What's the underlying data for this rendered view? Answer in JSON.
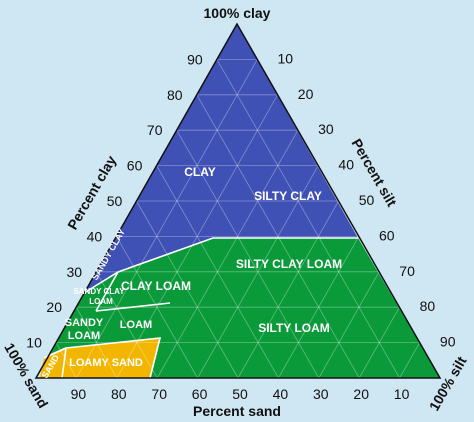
{
  "corners": {
    "top": "100% clay",
    "left": "100% sand",
    "right": "100% silt"
  },
  "axis_titles": {
    "left": "Percent clay",
    "right": "Percent silt",
    "bottom": "Percent sand"
  },
  "left_ticks": [
    "90",
    "80",
    "70",
    "60",
    "50",
    "40",
    "30",
    "20",
    "10"
  ],
  "right_ticks": [
    "10",
    "20",
    "30",
    "40",
    "50",
    "60",
    "70",
    "80",
    "90"
  ],
  "bottom_ticks": [
    "90",
    "80",
    "70",
    "60",
    "50",
    "40",
    "30",
    "20",
    "10"
  ],
  "regions": {
    "clay": "CLAY",
    "silty_clay": "SILTY CLAY",
    "sandy_clay": "SANDY CLAY",
    "clay_loam": "CLAY LOAM",
    "silty_clay_loam": "SILTY CLAY LOAM",
    "sandy_clay_loam_1": "SANDY CLAY",
    "sandy_clay_loam_2": "LOAM",
    "sandy_loam_1": "SANDY",
    "sandy_loam_2": "LOAM",
    "loam": "LOAM",
    "silty_loam": "SILTY LOAM",
    "sand": "SAND",
    "loamy_sand": "LOAMY SAND"
  },
  "colors": {
    "background": "#cfe6f3",
    "clay_group": "#3f51b5",
    "loam_group": "#0a9a3a",
    "sand_group": "#f2b600",
    "outline": "#111111"
  }
}
